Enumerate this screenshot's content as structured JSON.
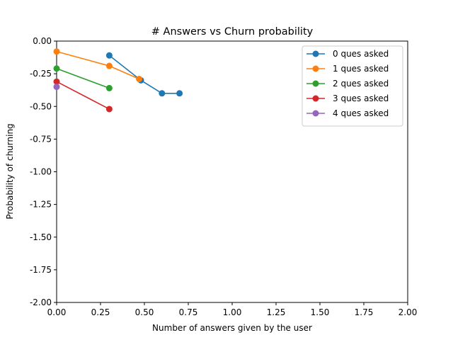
{
  "chart_data": {
    "type": "line",
    "title": "# Answers vs Churn probability",
    "xlabel": "Number of answers given by the user",
    "ylabel": "Probability of churning",
    "xlim": [
      0,
      2
    ],
    "ylim": [
      -2,
      0
    ],
    "xticks": [
      "0.00",
      "0.25",
      "0.50",
      "0.75",
      "1.00",
      "1.25",
      "1.50",
      "1.75",
      "2.00"
    ],
    "yticks": [
      "0.00",
      "-0.25",
      "-0.50",
      "-0.75",
      "-1.00",
      "-1.25",
      "-1.50",
      "-1.75",
      "-2.00"
    ],
    "grid": false,
    "legend_position": "top-right",
    "series": [
      {
        "name": "0 ques asked",
        "color": "#1f77b4",
        "x": [
          0.3,
          0.48,
          0.6,
          0.7
        ],
        "y": [
          -0.11,
          -0.3,
          -0.4,
          -0.4
        ]
      },
      {
        "name": "1 ques asked",
        "color": "#ff7f0e",
        "x": [
          0.0,
          0.3,
          0.47
        ],
        "y": [
          -0.08,
          -0.19,
          -0.29
        ]
      },
      {
        "name": "2 ques asked",
        "color": "#2ca02c",
        "x": [
          0.0,
          0.3
        ],
        "y": [
          -0.21,
          -0.36
        ]
      },
      {
        "name": "3 ques asked",
        "color": "#d62728",
        "x": [
          0.0,
          0.3
        ],
        "y": [
          -0.31,
          -0.52
        ]
      },
      {
        "name": "4 ques asked",
        "color": "#9467bd",
        "x": [
          0.0
        ],
        "y": [
          -0.35
        ]
      }
    ]
  }
}
